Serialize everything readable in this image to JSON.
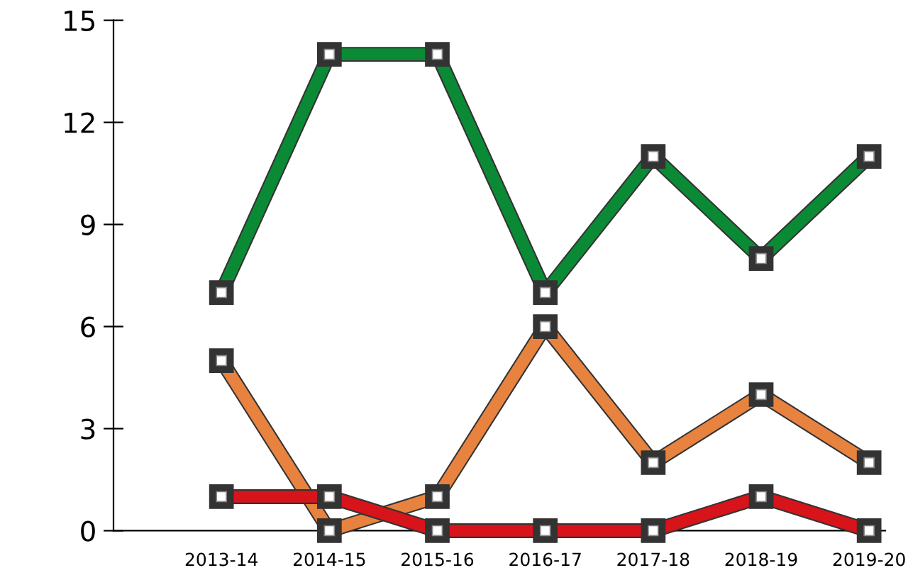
{
  "chart_data": {
    "type": "line",
    "categories": [
      "2013-14",
      "2014-15",
      "2015-16",
      "2016-17",
      "2017-18",
      "2018-19",
      "2019-20"
    ],
    "series": [
      {
        "color": "#0b8a35",
        "values": [
          7,
          14,
          14,
          7,
          11,
          8,
          11
        ]
      },
      {
        "color": "#e8823f",
        "values": [
          5,
          0,
          1,
          6,
          2,
          4,
          2
        ]
      },
      {
        "color": "#d7141a",
        "values": [
          1,
          1,
          0,
          0,
          0,
          1,
          0
        ]
      }
    ],
    "ylim": [
      0,
      15
    ],
    "yticks": [
      0,
      3,
      6,
      9,
      12,
      15
    ],
    "marker": "square",
    "line_style": "solid",
    "grid": false,
    "legend": false
  }
}
